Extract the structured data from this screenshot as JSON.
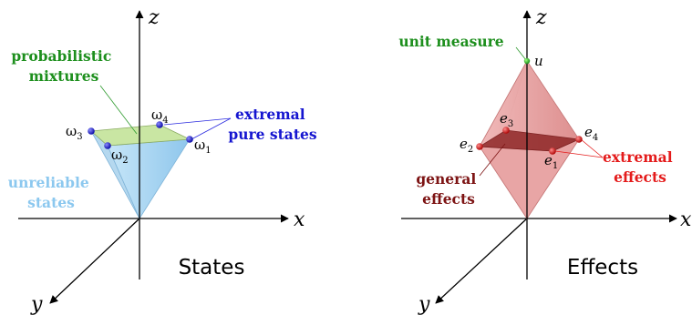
{
  "left_panel": {
    "title": "States",
    "axes": {
      "z": "z",
      "x": "x",
      "y": "y"
    },
    "vertices": [
      {
        "symbol": "ω",
        "sub": "1"
      },
      {
        "symbol": "ω",
        "sub": "2"
      },
      {
        "symbol": "ω",
        "sub": "3"
      },
      {
        "symbol": "ω",
        "sub": "4"
      }
    ],
    "label_mixtures": [
      "probabilistic",
      "mixtures"
    ],
    "label_pure": [
      "extremal",
      "pure states"
    ],
    "label_unreliable": [
      "unreliable",
      "states"
    ]
  },
  "right_panel": {
    "title": "Effects",
    "axes": {
      "z": "z",
      "x": "x",
      "y": "y"
    },
    "apex": "u",
    "effects": [
      {
        "symbol": "e",
        "sub": "1"
      },
      {
        "symbol": "e",
        "sub": "2"
      },
      {
        "symbol": "e",
        "sub": "3"
      },
      {
        "symbol": "e",
        "sub": "4"
      }
    ],
    "label_unit": "unit measure",
    "label_extremal": [
      "extremal",
      "effects"
    ],
    "label_general": [
      "general",
      "effects"
    ]
  },
  "colors": {
    "green": "#1d8f1d",
    "blue": "#1515d0",
    "light_blue": "#8cc8ef",
    "red": "#e41b1b",
    "dark_red": "#7d1414",
    "state_pyramid": "#a9d6f2",
    "mixture_face": "#c9e6a3",
    "effect_body": "#e59b9b"
  }
}
